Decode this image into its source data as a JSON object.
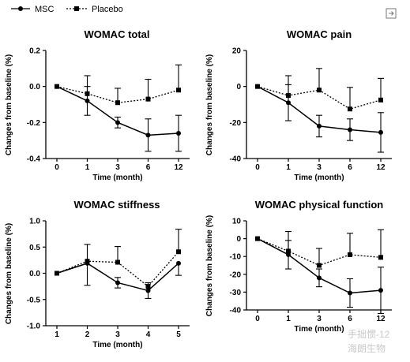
{
  "legend": {
    "msc_label": "MSC",
    "placebo_label": "Placebo"
  },
  "watermark": {
    "handle": "手拙惯-12",
    "name": "海朗生物"
  },
  "chart_data": [
    {
      "type": "line",
      "title": "WOMAC total",
      "xlabel": "Time (month)",
      "ylabel": "Changes from baseline (%)",
      "categories": [
        "0",
        "1",
        "3",
        "6",
        "12"
      ],
      "ylim": [
        -0.4,
        0.2
      ],
      "yticks": [
        "0.2",
        "0.0",
        "-0.2",
        "-0.4"
      ],
      "ytick_values": [
        0.2,
        0.0,
        -0.2,
        -0.4
      ],
      "series": [
        {
          "name": "MSC",
          "values": [
            0.0,
            -0.08,
            -0.2,
            -0.27,
            -0.26
          ],
          "err_low": [
            0.0,
            0.08,
            0.03,
            0.09,
            0.1
          ],
          "err_high": [
            0.0,
            0.08,
            0.03,
            0.09,
            0.1
          ]
        },
        {
          "name": "Placebo",
          "values": [
            0.0,
            -0.04,
            -0.09,
            -0.07,
            -0.02
          ],
          "err_low": [
            0.0,
            0.0,
            0.0,
            0.0,
            0.0
          ],
          "err_high": [
            0.0,
            0.1,
            0.08,
            0.11,
            0.14
          ]
        }
      ]
    },
    {
      "type": "line",
      "title": "WOMAC pain",
      "xlabel": "Time (month)",
      "ylabel": "Changes from baseline (%)",
      "categories": [
        "0",
        "1",
        "3",
        "6",
        "12"
      ],
      "ylim": [
        -40,
        20
      ],
      "yticks": [
        "20",
        "0",
        "-20",
        "-40"
      ],
      "ytick_values": [
        20,
        0,
        -20,
        -40
      ],
      "series": [
        {
          "name": "MSC",
          "values": [
            0,
            -9,
            -22,
            -24,
            -25.5
          ],
          "err_low": [
            0,
            10,
            6,
            6,
            11
          ],
          "err_high": [
            0,
            10,
            6,
            6,
            11
          ]
        },
        {
          "name": "Placebo",
          "values": [
            0,
            -5,
            -2,
            -12.5,
            -7.5
          ],
          "err_low": [
            0,
            0,
            0,
            0,
            0
          ],
          "err_high": [
            0,
            11,
            12,
            12,
            12
          ]
        }
      ]
    },
    {
      "type": "line",
      "title": "WOMAC stiffness",
      "xlabel": "Time (month)",
      "ylabel": "Changes from baseline (%)",
      "categories": [
        "1",
        "2",
        "3",
        "4",
        "5"
      ],
      "ylim": [
        -1.0,
        1.0
      ],
      "yticks": [
        "1.0",
        "0.5",
        "0.0",
        "-0.5",
        "-1.0"
      ],
      "ytick_values": [
        1.0,
        0.5,
        0.0,
        -0.5,
        -1.0
      ],
      "series": [
        {
          "name": "MSC",
          "values": [
            0.0,
            0.19,
            -0.18,
            -0.33,
            0.19
          ],
          "err_low": [
            0.0,
            0.42,
            0.1,
            0.15,
            0.23
          ],
          "err_high": [
            0.0,
            0.0,
            0.1,
            0.15,
            0.0
          ]
        },
        {
          "name": "Placebo",
          "values": [
            0.0,
            0.23,
            0.21,
            -0.25,
            0.41
          ],
          "err_low": [
            0.0,
            0.0,
            0.0,
            0.0,
            0.0
          ],
          "err_high": [
            0.0,
            0.32,
            0.3,
            0.0,
            0.43
          ]
        }
      ]
    },
    {
      "type": "line",
      "title": "WOMAC physical function",
      "xlabel": "Time (month)",
      "ylabel": "Changes from baseline (%)",
      "categories": [
        "0",
        "1",
        "3",
        "6",
        "12"
      ],
      "ylim": [
        -40,
        10
      ],
      "yticks": [
        "10",
        "0",
        "-10",
        "-20",
        "-30",
        "-40"
      ],
      "ytick_values": [
        10,
        0,
        -10,
        -20,
        -30,
        -40
      ],
      "series": [
        {
          "name": "MSC",
          "values": [
            0,
            -9,
            -22,
            -30.5,
            -29
          ],
          "err_low": [
            0,
            8,
            5,
            8,
            13
          ],
          "err_high": [
            0,
            8,
            5,
            8,
            13
          ]
        },
        {
          "name": "Placebo",
          "values": [
            0,
            -7,
            -15,
            -9,
            -10.5
          ],
          "err_low": [
            0,
            0,
            0,
            0,
            0
          ],
          "err_high": [
            0,
            11,
            9.5,
            12,
            15.5
          ]
        }
      ]
    }
  ]
}
